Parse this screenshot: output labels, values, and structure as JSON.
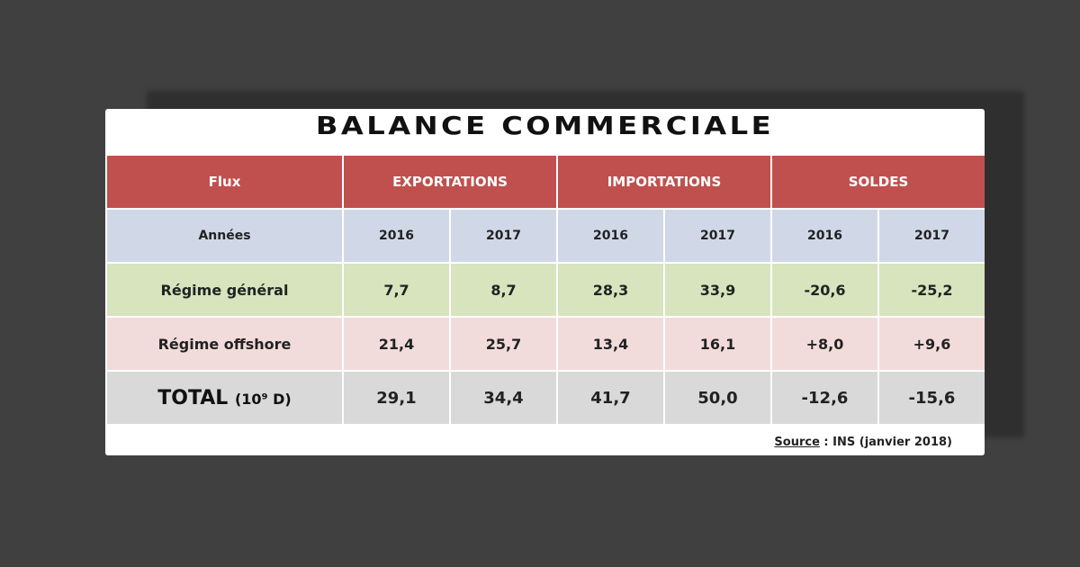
{
  "chart_data": {
    "type": "table",
    "title": "BALANCE COMMERCIALE",
    "header": {
      "flux": "Flux",
      "groups": [
        "EXPORTATIONS",
        "IMPORTATIONS",
        "SOLDES"
      ]
    },
    "years_label": "Années",
    "years": [
      "2016",
      "2017",
      "2016",
      "2017",
      "2016",
      "2017"
    ],
    "rows": [
      {
        "label": "Régime général",
        "values": [
          "7,7",
          "8,7",
          "28,3",
          "33,9",
          "-20,6",
          "-25,2"
        ]
      },
      {
        "label": "Régime offshore",
        "values": [
          "21,4",
          "25,7",
          "13,4",
          "16,1",
          "+8,0",
          "+9,6"
        ]
      },
      {
        "label": "TOTAL",
        "unit": "(10⁹ D)",
        "values": [
          "29,1",
          "34,4",
          "41,7",
          "50,0",
          "-12,6",
          "-15,6"
        ]
      }
    ],
    "source": {
      "label": "Source",
      "text": " : INS (janvier 2018)"
    }
  },
  "colors": {
    "header": "#c0504d",
    "years_row": "#d0d8e8",
    "general_row": "#d7e4bd",
    "offshore_row": "#f2dcdb",
    "total_row": "#d9d9d9",
    "background": "#404040"
  }
}
